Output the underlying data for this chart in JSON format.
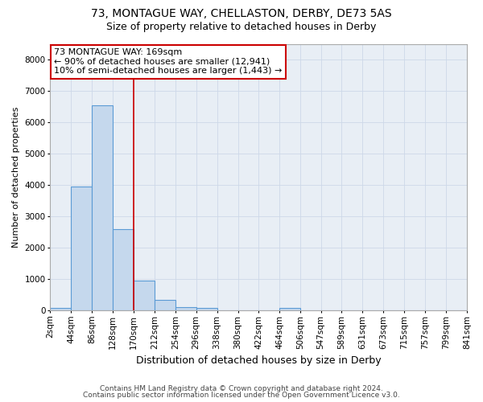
{
  "title1": "73, MONTAGUE WAY, CHELLASTON, DERBY, DE73 5AS",
  "title2": "Size of property relative to detached houses in Derby",
  "xlabel": "Distribution of detached houses by size in Derby",
  "ylabel": "Number of detached properties",
  "footer1": "Contains HM Land Registry data © Crown copyright and database right 2024.",
  "footer2": "Contains public sector information licensed under the Open Government Licence v3.0.",
  "bin_edges": [
    2,
    44,
    86,
    128,
    170,
    212,
    254,
    296,
    338,
    380,
    422,
    464,
    506,
    547,
    589,
    631,
    673,
    715,
    757,
    799,
    841
  ],
  "bar_heights": [
    70,
    3950,
    6550,
    2600,
    950,
    330,
    110,
    70,
    0,
    0,
    0,
    70,
    0,
    0,
    0,
    0,
    0,
    0,
    0,
    0
  ],
  "bar_color": "#c5d8ed",
  "bar_edgecolor": "#5b9bd5",
  "bar_linewidth": 0.8,
  "grid_color": "#cdd8e8",
  "background_color": "#e8eef5",
  "vline_x": 170,
  "vline_color": "#cc0000",
  "vline_linewidth": 1.2,
  "annotation_line1": "73 MONTAGUE WAY: 169sqm",
  "annotation_line2": "← 90% of detached houses are smaller (12,941)",
  "annotation_line3": "10% of semi-detached houses are larger (1,443) →",
  "annotation_box_color": "#cc0000",
  "ylim": [
    0,
    8500
  ],
  "yticks": [
    0,
    1000,
    2000,
    3000,
    4000,
    5000,
    6000,
    7000,
    8000
  ],
  "title1_fontsize": 10,
  "title2_fontsize": 9,
  "xlabel_fontsize": 9,
  "ylabel_fontsize": 8,
  "tick_fontsize": 7.5,
  "annotation_fontsize": 8,
  "footer_fontsize": 6.5
}
